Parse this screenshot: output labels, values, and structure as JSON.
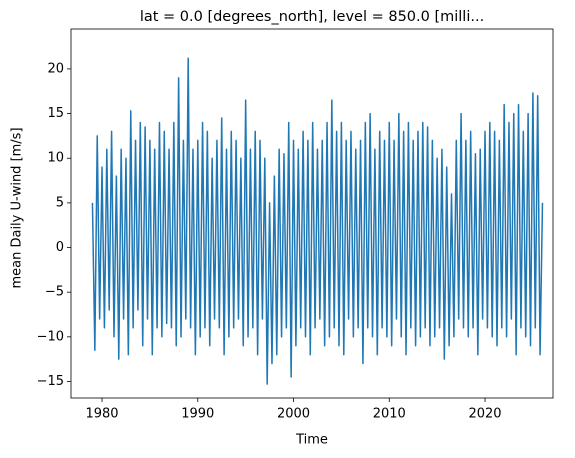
{
  "chart_data": {
    "type": "line",
    "title": "lat = 0.0 [degrees_north], level = 850.0 [milli...",
    "xlabel": "Time",
    "ylabel": "mean Daily U-wind [m/s]",
    "color": "#1f77b4",
    "xlim": [
      1976.76,
      2027.1
    ],
    "ylim": [
      -16.85,
      24.47
    ],
    "xticks": [
      1980,
      1990,
      2000,
      2010,
      2020
    ],
    "yticks": [
      {
        "value": -15,
        "label": "−15"
      },
      {
        "value": -10,
        "label": "−10"
      },
      {
        "value": -5,
        "label": "−5"
      },
      0,
      5,
      10,
      15,
      20
    ],
    "x": [
      1979,
      1979.25,
      1979.5,
      1979.75,
      1980,
      1980.25,
      1980.5,
      1980.75,
      1981,
      1981.25,
      1981.5,
      1981.75,
      1982,
      1982.25,
      1982.5,
      1982.75,
      1983,
      1983.25,
      1983.5,
      1983.75,
      1984,
      1984.25,
      1984.5,
      1984.75,
      1985,
      1985.25,
      1985.5,
      1985.75,
      1986,
      1986.25,
      1986.5,
      1986.75,
      1987,
      1987.25,
      1987.5,
      1987.75,
      1988,
      1988.25,
      1988.5,
      1988.75,
      1989,
      1989.25,
      1989.5,
      1989.75,
      1990,
      1990.25,
      1990.5,
      1990.75,
      1991,
      1991.25,
      1991.5,
      1991.75,
      1992,
      1992.25,
      1992.5,
      1992.75,
      1993,
      1993.25,
      1993.5,
      1993.75,
      1994,
      1994.25,
      1994.5,
      1994.75,
      1995,
      1995.25,
      1995.5,
      1995.75,
      1996,
      1996.25,
      1996.5,
      1996.75,
      1997,
      1997.25,
      1997.5,
      1997.75,
      1998,
      1998.25,
      1998.5,
      1998.75,
      1999,
      1999.25,
      1999.5,
      1999.75,
      2000,
      2000.25,
      2000.5,
      2000.75,
      2001,
      2001.25,
      2001.5,
      2001.75,
      2002,
      2002.25,
      2002.5,
      2002.75,
      2003,
      2003.25,
      2003.5,
      2003.75,
      2004,
      2004.25,
      2004.5,
      2004.75,
      2005,
      2005.25,
      2005.5,
      2005.75,
      2006,
      2006.25,
      2006.5,
      2006.75,
      2007,
      2007.25,
      2007.5,
      2007.75,
      2008,
      2008.25,
      2008.5,
      2008.75,
      2009,
      2009.25,
      2009.5,
      2009.75,
      2010,
      2010.25,
      2010.5,
      2010.75,
      2011,
      2011.25,
      2011.5,
      2011.75,
      2012,
      2012.25,
      2012.5,
      2012.75,
      2013,
      2013.25,
      2013.5,
      2013.75,
      2014,
      2014.25,
      2014.5,
      2014.75,
      2015,
      2015.25,
      2015.5,
      2015.75,
      2016,
      2016.25,
      2016.5,
      2016.75,
      2017,
      2017.25,
      2017.5,
      2017.75,
      2018,
      2018.25,
      2018.5,
      2018.75,
      2019,
      2019.25,
      2019.5,
      2019.75,
      2020,
      2020.25,
      2020.5,
      2020.75,
      2021,
      2021.25,
      2021.5,
      2021.75,
      2022,
      2022.25,
      2022.5,
      2022.75,
      2023,
      2023.25,
      2023.5,
      2023.75,
      2024,
      2024.25,
      2024.5,
      2024.75,
      2025,
      2025.25,
      2025.5,
      2025.75,
      2026
    ],
    "values": [
      5,
      -11.5,
      12.5,
      -8,
      9,
      -9,
      11,
      -7,
      13,
      -10,
      8,
      -12.5,
      11,
      -8,
      10,
      -12,
      15.3,
      -9,
      12,
      -7,
      14,
      -11,
      13.5,
      -8,
      12,
      -12,
      11,
      -9,
      14,
      -10,
      13,
      -8.5,
      11,
      -9,
      14,
      -11,
      19,
      -10,
      12,
      -8,
      21.2,
      -9,
      11,
      -12,
      12,
      -10,
      14,
      -9,
      13,
      -11,
      10,
      -8,
      12,
      -9,
      14.5,
      -12,
      11,
      -10,
      13,
      -9,
      12,
      -8,
      10,
      -11,
      16.5,
      -10,
      11,
      -9,
      13,
      -12,
      12,
      -8,
      10,
      -15.3,
      5,
      -13,
      8,
      -12,
      11,
      -10,
      10.5,
      -9,
      14,
      -14.5,
      12,
      -11,
      11,
      -9,
      13,
      -10,
      12,
      -12,
      14,
      -9,
      11,
      -8,
      12,
      -11,
      14,
      -10,
      16.5,
      -9,
      13,
      -11,
      14,
      -12,
      12,
      -8,
      13,
      -10,
      11,
      -9,
      12,
      -13,
      14,
      -9,
      15,
      -10,
      11,
      -12,
      13,
      -9,
      12,
      -10,
      14,
      -11,
      12,
      -8,
      15,
      -10,
      13,
      -12,
      14,
      -9,
      12,
      -11,
      13,
      -10,
      14,
      -9,
      13.5,
      -11,
      12,
      -10,
      10,
      -9,
      11,
      -12.5,
      9,
      -11,
      6,
      -10,
      12,
      -8,
      15,
      -9,
      12,
      -10,
      13,
      -9,
      10.5,
      -12,
      11,
      -8,
      13,
      -9,
      14,
      -10,
      13,
      -11,
      12,
      -9,
      16,
      -10,
      14,
      -8,
      15,
      -12,
      16,
      -9,
      13,
      -10,
      15,
      -11,
      17.3,
      -9,
      17,
      -12,
      5
    ]
  }
}
